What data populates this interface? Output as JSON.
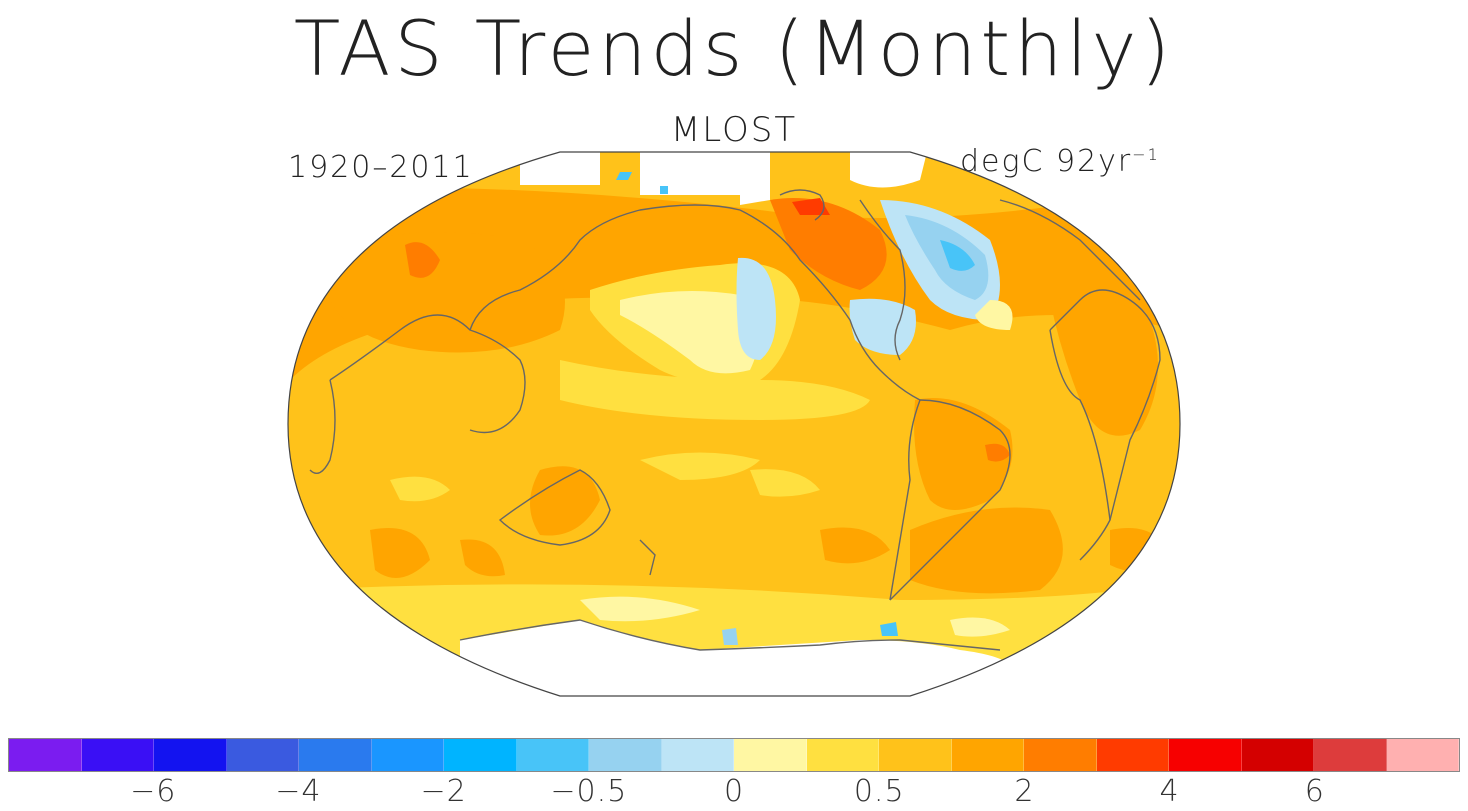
{
  "title": "TAS Trends (Monthly)",
  "subtitle": "MLOST",
  "period": "1920–2011",
  "units": {
    "base": "degC 92yr",
    "exp": "−1"
  },
  "colorbar": {
    "colors": [
      "#7b1cf0",
      "#3a0ff5",
      "#1313f0",
      "#3a5ae0",
      "#2a7aee",
      "#1a96ff",
      "#00b4ff",
      "#48c4f8",
      "#96d2f0",
      "#bde4f6",
      "#fff7a3",
      "#ffe040",
      "#ffc21a",
      "#ffa500",
      "#ff7d00",
      "#ff3b00",
      "#f70000",
      "#d40000",
      "#dd3c3c",
      "#ffb0b0"
    ],
    "tick_labels": [
      "−6",
      "−4",
      "−2",
      "−0.5",
      "0",
      "0.5",
      "2",
      "4",
      "6"
    ]
  },
  "map": {
    "projection": "Robinson (Pacific-centred)",
    "fill_colors": {
      "ocean_base": "#ffc21a",
      "warm": "#ffa500",
      "hot": "#ff7d00",
      "light": "#ffe040",
      "pale": "#fff7a3",
      "cool": "#bde4f6",
      "cold": "#48c4f8",
      "land_outline": "#666666",
      "missing": "#ffffff"
    }
  }
}
